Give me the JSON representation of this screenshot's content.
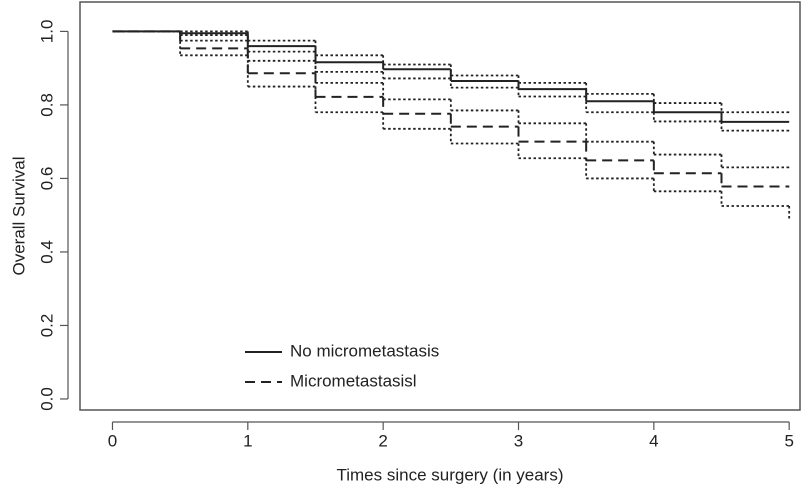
{
  "chart_data": {
    "type": "step",
    "xlabel": "Times since surgery (in years)",
    "ylabel": "Overall Survival",
    "x": [
      0,
      0.5,
      1,
      1.5,
      2,
      2.5,
      3,
      3.5,
      4,
      4.5,
      5
    ],
    "series": [
      {
        "name": "No micrometastasis",
        "color": "#222222",
        "dash": "solid",
        "values": [
          1.0,
          0.995,
          0.96,
          0.916,
          0.897,
          0.865,
          0.843,
          0.81,
          0.78,
          0.754,
          0.754
        ],
        "upper": [
          1.0,
          1.0,
          0.975,
          0.935,
          0.91,
          0.88,
          0.86,
          0.83,
          0.805,
          0.78,
          0.78
        ],
        "lower": [
          1.0,
          0.99,
          0.945,
          0.89,
          0.872,
          0.847,
          0.823,
          0.78,
          0.755,
          0.73,
          0.73
        ]
      },
      {
        "name": "Micrometastasisl",
        "color": "#222222",
        "dash": "dashed",
        "values": [
          1.0,
          0.954,
          0.886,
          0.822,
          0.776,
          0.741,
          0.7,
          0.649,
          0.614,
          0.578,
          0.578
        ],
        "upper": [
          1.0,
          0.975,
          0.92,
          0.86,
          0.815,
          0.785,
          0.75,
          0.7,
          0.665,
          0.63,
          0.63
        ],
        "lower": [
          1.0,
          0.935,
          0.85,
          0.78,
          0.735,
          0.695,
          0.655,
          0.6,
          0.565,
          0.525,
          0.49
        ]
      }
    ],
    "xlim": [
      -0.24,
      5.08
    ],
    "ylim": [
      -0.03,
      1.08
    ],
    "xticks": [
      0,
      1,
      2,
      3,
      4,
      5
    ],
    "yticks": [
      {
        "value": 0,
        "label": "0.0"
      },
      {
        "value": 0.2,
        "label": "0.2"
      },
      {
        "value": 0.4,
        "label": "0.4"
      },
      {
        "value": 0.6,
        "label": "0.6"
      },
      {
        "value": 0.8,
        "label": "0.8"
      },
      {
        "value": 1,
        "label": "1.0"
      }
    ],
    "legend": "bottom-left"
  }
}
